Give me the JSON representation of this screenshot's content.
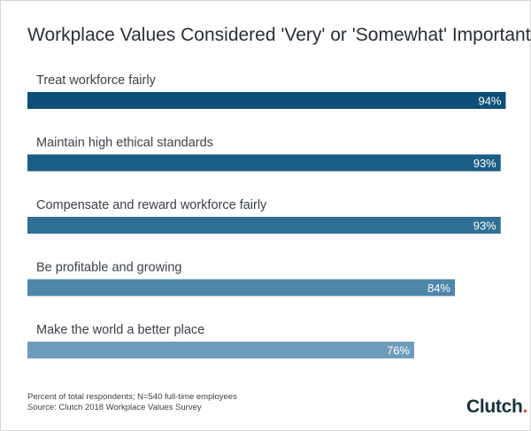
{
  "title": "Workplace Values Considered 'Very' or 'Somewhat' Important",
  "chart_data": {
    "type": "bar",
    "orientation": "horizontal",
    "categories": [
      "Treat workforce fairly",
      "Maintain high ethical standards",
      "Compensate and reward workforce fairly",
      "Be profitable and growing",
      "Make the world a better place"
    ],
    "values": [
      94,
      93,
      93,
      84,
      76
    ],
    "value_labels": [
      "94%",
      "93%",
      "93%",
      "84%",
      "76%"
    ],
    "colors": [
      "#0d4f78",
      "#1a5e86",
      "#2e6f93",
      "#4d86a8",
      "#6e9cba"
    ],
    "xlim": [
      0,
      100
    ],
    "grid": false,
    "legend": "none"
  },
  "footnote": {
    "line1": "Percent of total respondents; N=540 full-time employees",
    "line2": "Source: Clutch 2018 Workplace Values Survey"
  },
  "logo": {
    "text": "Clutch",
    "dot": ".",
    "accent": "#e4472f"
  }
}
